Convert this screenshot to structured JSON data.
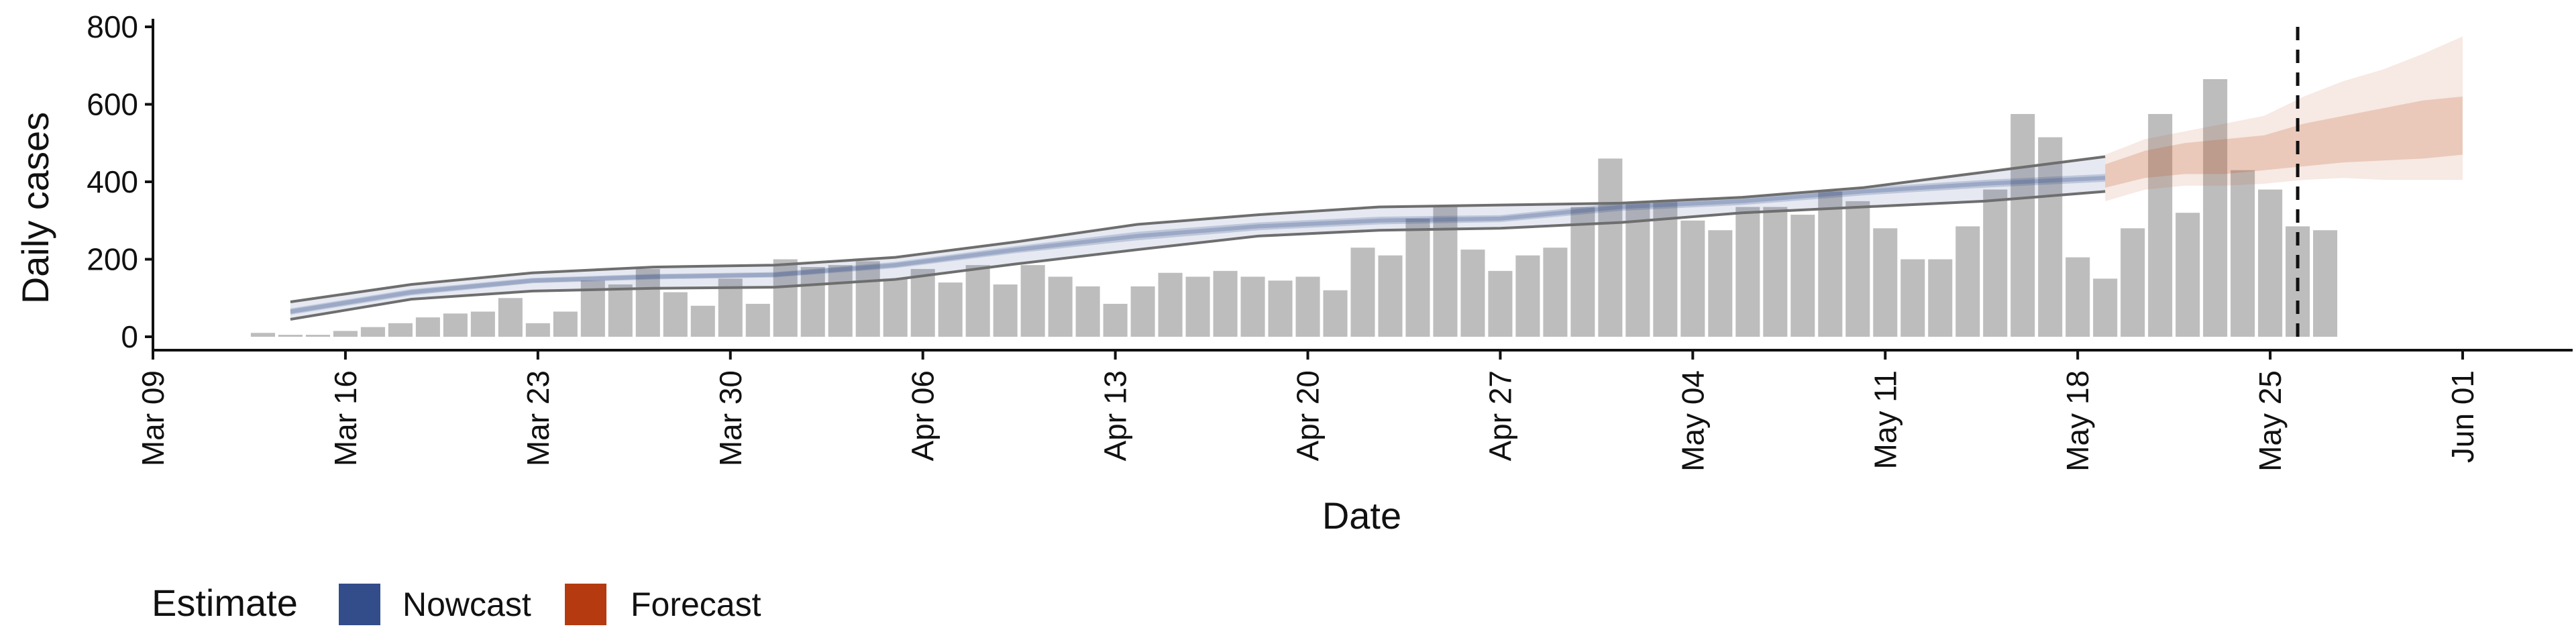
{
  "chart_data": {
    "type": "bar",
    "xlabel": "Date",
    "ylabel": "Daily cases",
    "ylim": [
      0,
      800
    ],
    "yticks": [
      0,
      200,
      400,
      600,
      800
    ],
    "xlim": [
      "2020-03-09",
      "2020-06-05"
    ],
    "xticks": [
      {
        "date": "2020-03-09",
        "label": "Mar 09"
      },
      {
        "date": "2020-03-16",
        "label": "Mar 16"
      },
      {
        "date": "2020-03-23",
        "label": "Mar 23"
      },
      {
        "date": "2020-03-30",
        "label": "Mar 30"
      },
      {
        "date": "2020-04-06",
        "label": "Apr 06"
      },
      {
        "date": "2020-04-13",
        "label": "Apr 13"
      },
      {
        "date": "2020-04-20",
        "label": "Apr 20"
      },
      {
        "date": "2020-04-27",
        "label": "Apr 27"
      },
      {
        "date": "2020-05-04",
        "label": "May 04"
      },
      {
        "date": "2020-05-11",
        "label": "May 11"
      },
      {
        "date": "2020-05-18",
        "label": "May 18"
      },
      {
        "date": "2020-05-25",
        "label": "May 25"
      },
      {
        "date": "2020-06-01",
        "label": "Jun 01"
      }
    ],
    "cases": {
      "start_date": "2020-03-13",
      "values": [
        10,
        5,
        5,
        15,
        25,
        35,
        50,
        60,
        65,
        100,
        35,
        65,
        145,
        135,
        175,
        115,
        80,
        150,
        85,
        200,
        180,
        185,
        195,
        150,
        175,
        140,
        185,
        135,
        185,
        155,
        130,
        85,
        130,
        165,
        155,
        170,
        155,
        145,
        155,
        120,
        230,
        210,
        305,
        335,
        225,
        170,
        210,
        230,
        335,
        460,
        345,
        350,
        300,
        275,
        335,
        335,
        315,
        375,
        350,
        280,
        200,
        200,
        285,
        380,
        575,
        515,
        205,
        150,
        280,
        575,
        320,
        665,
        430,
        380,
        285,
        275
      ]
    },
    "nowcast": {
      "start_date": "2020-03-14",
      "end_date": "2020-05-19",
      "median": [
        65,
        115,
        145,
        155,
        160,
        185,
        225,
        260,
        285,
        300,
        305,
        335,
        350,
        375,
        395,
        410
      ],
      "lower50": [
        57,
        107,
        138,
        148,
        153,
        177,
        216,
        249,
        275,
        290,
        296,
        325,
        340,
        365,
        385,
        400
      ],
      "upper50": [
        73,
        123,
        152,
        162,
        167,
        193,
        234,
        271,
        295,
        310,
        314,
        345,
        360,
        385,
        405,
        420
      ],
      "lower90": [
        45,
        97,
        118,
        125,
        128,
        148,
        188,
        225,
        260,
        275,
        280,
        295,
        320,
        335,
        350,
        375
      ],
      "upper90": [
        90,
        135,
        165,
        180,
        185,
        205,
        245,
        290,
        315,
        335,
        340,
        345,
        360,
        385,
        425,
        465
      ]
    },
    "forecast": {
      "start_date": "2020-05-19",
      "end_date": "2020-06-01",
      "median": [
        420,
        450,
        460,
        470,
        480,
        500,
        520,
        530,
        540,
        550
      ],
      "lower50": [
        385,
        410,
        420,
        420,
        430,
        440,
        450,
        455,
        460,
        470
      ],
      "upper50": [
        445,
        480,
        500,
        510,
        520,
        550,
        570,
        590,
        610,
        620
      ],
      "lower90": [
        350,
        380,
        390,
        390,
        395,
        405,
        410,
        405,
        405,
        405
      ],
      "upper90": [
        470,
        510,
        530,
        550,
        570,
        620,
        660,
        690,
        730,
        775
      ]
    },
    "vline_date": "2020-05-26",
    "legend": {
      "title": "Estimate",
      "position": "bottom-left",
      "items": [
        {
          "label": "Nowcast",
          "color": "#324d8a"
        },
        {
          "label": "Forecast",
          "color": "#b53a0f"
        }
      ]
    },
    "colors": {
      "bars": "#bdbdbd",
      "nowcast_band": "#324d8a",
      "forecast_band": "#c1552a",
      "ci_line": "#6e6e6e",
      "axis": "#111111"
    }
  }
}
